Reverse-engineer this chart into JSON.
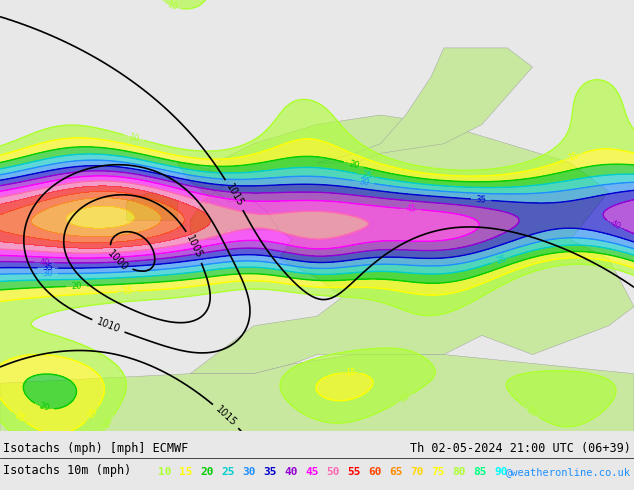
{
  "title_line1": "Isotachs (mph) [mph] ECMWF",
  "title_line2": "Th 02-05-2024 21:00 UTC (06+39)",
  "subtitle": "Isotachs 10m (mph)",
  "legend_values": [
    10,
    15,
    20,
    25,
    30,
    35,
    40,
    45,
    50,
    55,
    60,
    65,
    70,
    75,
    80,
    85,
    90
  ],
  "legend_colors": [
    "#adff2f",
    "#ffff00",
    "#00ff00",
    "#00cdcd",
    "#00bfff",
    "#0000ff",
    "#8a2be2",
    "#ff00ff",
    "#ff1493",
    "#ff0000",
    "#ff4500",
    "#ff8c00",
    "#ffd700",
    "#ffff00",
    "#adff2f",
    "#00ff7f",
    "#00ffff"
  ],
  "copyright": "@weatheronline.co.uk",
  "bg_color": "#e8e8e8",
  "land_color": "#c8e8a0",
  "sea_color": "#e8e8e8",
  "isobar_color": "#000000",
  "isotach_colors": {
    "10": "#adff2f",
    "15": "#ffff00",
    "20": "#00cc00",
    "25": "#00cdcd",
    "30": "#1e90ff",
    "35": "#0000cd",
    "40": "#9400d3",
    "45": "#ff00ff",
    "50": "#ff69b4",
    "55": "#ff0000",
    "60": "#ff4500",
    "65": "#ff8c00",
    "70": "#ffd700",
    "75": "#ffff00",
    "80": "#adff2f",
    "85": "#00ff7f",
    "90": "#00ffff"
  },
  "figsize": [
    6.34,
    4.9
  ],
  "dpi": 100
}
